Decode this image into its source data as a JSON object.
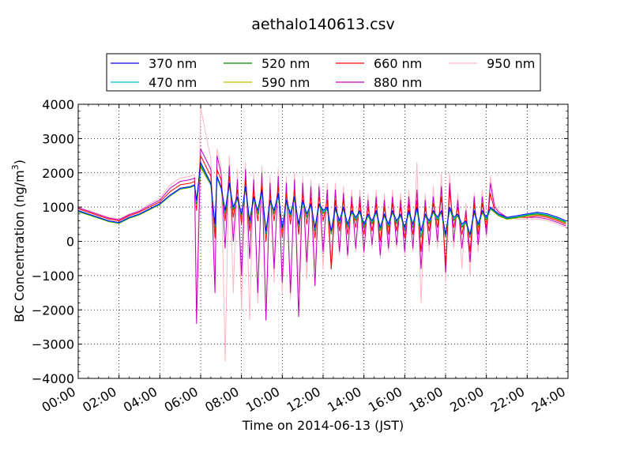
{
  "chart_data": {
    "type": "line",
    "title": "aethalo140613.csv",
    "xlabel": "Time on 2014-06-13 (JST)",
    "ylabel_main": "BC Concentration (ng/m",
    "ylabel_sup": "3",
    "ylabel_close": ")",
    "xlim": [
      0,
      24
    ],
    "ylim": [
      -4000,
      4000
    ],
    "x_ticks": [
      0,
      2,
      4,
      6,
      8,
      10,
      12,
      14,
      16,
      18,
      20,
      22,
      24
    ],
    "x_tick_labels": [
      "00:00",
      "02:00",
      "04:00",
      "06:00",
      "08:00",
      "10:00",
      "12:00",
      "14:00",
      "16:00",
      "18:00",
      "20:00",
      "22:00",
      "24:00"
    ],
    "y_ticks": [
      -4000,
      -3000,
      -2000,
      -1000,
      0,
      1000,
      2000,
      3000,
      4000
    ],
    "y_tick_labels": [
      "−4000",
      "−3000",
      "−2000",
      "−1000",
      "0",
      "1000",
      "2000",
      "3000",
      "4000"
    ],
    "grid": true,
    "legend_placement": "top",
    "x": [
      0.0,
      0.5,
      1.0,
      1.5,
      2.0,
      2.5,
      3.0,
      3.5,
      4.0,
      4.5,
      5.0,
      5.5,
      5.7,
      5.8,
      6.0,
      6.5,
      6.7,
      6.8,
      7.0,
      7.2,
      7.4,
      7.6,
      7.8,
      8.0,
      8.2,
      8.4,
      8.6,
      8.8,
      9.0,
      9.2,
      9.4,
      9.6,
      9.8,
      10.0,
      10.2,
      10.4,
      10.6,
      10.8,
      11.0,
      11.2,
      11.4,
      11.6,
      11.8,
      12.0,
      12.2,
      12.4,
      12.6,
      12.8,
      13.0,
      13.2,
      13.4,
      13.6,
      13.8,
      14.0,
      14.2,
      14.4,
      14.6,
      14.8,
      15.0,
      15.2,
      15.4,
      15.6,
      15.8,
      16.0,
      16.2,
      16.4,
      16.6,
      16.8,
      17.0,
      17.2,
      17.4,
      17.6,
      17.8,
      18.0,
      18.2,
      18.4,
      18.6,
      18.8,
      19.0,
      19.2,
      19.4,
      19.6,
      19.8,
      20.0,
      20.2,
      20.4,
      20.6,
      21.0,
      21.5,
      22.0,
      22.5,
      23.0,
      23.5,
      23.9
    ],
    "series": [
      {
        "name": "370 nm",
        "color": "#0000ff",
        "values": [
          900,
          800,
          700,
          600,
          550,
          700,
          800,
          950,
          1100,
          1350,
          1550,
          1600,
          1650,
          1200,
          2300,
          1700,
          500,
          1900,
          1600,
          900,
          1700,
          1000,
          1300,
          800,
          1600,
          600,
          1300,
          900,
          1500,
          300,
          1200,
          900,
          1400,
          400,
          1200,
          800,
          1300,
          500,
          1200,
          800,
          1100,
          400,
          1100,
          900,
          1000,
          300,
          1000,
          600,
          1000,
          500,
          900,
          700,
          900,
          500,
          800,
          600,
          900,
          400,
          800,
          500,
          900,
          600,
          800,
          400,
          900,
          500,
          1000,
          300,
          800,
          600,
          900,
          700,
          900,
          200,
          1000,
          700,
          800,
          500,
          600,
          200,
          900,
          500,
          900,
          700,
          1000,
          900,
          800,
          700,
          750,
          800,
          850,
          800,
          700,
          600
        ]
      },
      {
        "name": "470 nm",
        "color": "#00bfbf",
        "values": [
          880,
          790,
          690,
          590,
          540,
          690,
          790,
          940,
          1090,
          1340,
          1540,
          1590,
          1640,
          1150,
          2250,
          1680,
          450,
          1880,
          1580,
          850,
          1680,
          950,
          1280,
          750,
          1580,
          550,
          1280,
          850,
          1480,
          250,
          1180,
          850,
          1380,
          350,
          1180,
          750,
          1280,
          450,
          1180,
          750,
          1080,
          350,
          1080,
          850,
          980,
          250,
          980,
          550,
          980,
          450,
          880,
          650,
          880,
          450,
          780,
          550,
          880,
          350,
          780,
          450,
          880,
          550,
          780,
          350,
          880,
          450,
          980,
          150,
          780,
          550,
          880,
          650,
          880,
          150,
          980,
          650,
          780,
          450,
          580,
          150,
          880,
          450,
          880,
          650,
          980,
          880,
          780,
          680,
          720,
          780,
          820,
          770,
          670,
          570
        ]
      },
      {
        "name": "520 nm",
        "color": "#008000",
        "values": [
          870,
          780,
          680,
          580,
          530,
          680,
          780,
          930,
          1080,
          1330,
          1530,
          1580,
          1630,
          1100,
          2200,
          1660,
          420,
          1860,
          1560,
          820,
          1660,
          920,
          1260,
          720,
          1560,
          520,
          1260,
          820,
          1460,
          220,
          1160,
          820,
          1360,
          320,
          1160,
          720,
          1260,
          420,
          1160,
          720,
          1060,
          320,
          1060,
          820,
          960,
          220,
          960,
          520,
          960,
          420,
          860,
          620,
          860,
          420,
          760,
          520,
          860,
          320,
          760,
          420,
          860,
          520,
          760,
          320,
          860,
          420,
          960,
          120,
          760,
          520,
          860,
          620,
          860,
          120,
          960,
          620,
          760,
          420,
          560,
          120,
          860,
          420,
          860,
          620,
          960,
          860,
          760,
          660,
          700,
          760,
          800,
          750,
          650,
          550
        ]
      },
      {
        "name": "590 nm",
        "color": "#bfbf00",
        "values": [
          860,
          770,
          670,
          570,
          520,
          670,
          770,
          920,
          1070,
          1320,
          1520,
          1570,
          1620,
          1050,
          2150,
          1640,
          400,
          1840,
          1540,
          800,
          1640,
          900,
          1240,
          700,
          1540,
          500,
          1240,
          800,
          1440,
          200,
          1140,
          800,
          1340,
          300,
          1140,
          700,
          1240,
          400,
          1140,
          700,
          1040,
          300,
          1040,
          800,
          940,
          200,
          940,
          500,
          940,
          400,
          840,
          600,
          840,
          400,
          740,
          500,
          840,
          300,
          740,
          400,
          840,
          500,
          740,
          300,
          840,
          400,
          940,
          100,
          740,
          500,
          840,
          600,
          840,
          100,
          940,
          600,
          740,
          400,
          540,
          100,
          840,
          400,
          840,
          600,
          940,
          840,
          740,
          640,
          680,
          740,
          780,
          730,
          630,
          530
        ]
      },
      {
        "name": "660 nm",
        "color": "#ff0000",
        "values": [
          950,
          850,
          750,
          650,
          600,
          750,
          850,
          1000,
          1150,
          1450,
          1650,
          1700,
          1750,
          900,
          2500,
          1900,
          100,
          2100,
          1800,
          600,
          1900,
          700,
          1500,
          500,
          1800,
          300,
          1500,
          600,
          1700,
          0,
          1400,
          600,
          1600,
          100,
          1400,
          500,
          1500,
          200,
          1400,
          500,
          1300,
          100,
          1300,
          600,
          1200,
          -800,
          1200,
          300,
          1200,
          200,
          1100,
          400,
          1100,
          200,
          1000,
          300,
          1100,
          0,
          1000,
          200,
          1100,
          300,
          1000,
          100,
          1100,
          200,
          1200,
          -300,
          1000,
          300,
          1100,
          400,
          1300,
          -700,
          1500,
          400,
          1000,
          200,
          800,
          -300,
          1100,
          200,
          1100,
          400,
          1400,
          900,
          800,
          700,
          700,
          700,
          750,
          700,
          600,
          500
        ]
      },
      {
        "name": "880 nm",
        "color": "#bf00bf",
        "values": [
          980,
          880,
          780,
          680,
          630,
          780,
          880,
          1050,
          1200,
          1550,
          1750,
          1800,
          1850,
          -2400,
          2700,
          2100,
          -1500,
          2500,
          2000,
          -200,
          2200,
          0,
          1800,
          -1000,
          2100,
          -500,
          1800,
          -1500,
          2000,
          -2300,
          1700,
          -800,
          1900,
          -1200,
          1700,
          -1500,
          1800,
          -2200,
          1700,
          -600,
          1600,
          -1300,
          1600,
          -300,
          1500,
          -800,
          1500,
          -300,
          1400,
          -400,
          1300,
          -200,
          1300,
          -300,
          1200,
          -100,
          1300,
          -400,
          1200,
          -200,
          1300,
          -100,
          1200,
          -300,
          1300,
          -200,
          1500,
          -800,
          1200,
          -100,
          1300,
          0,
          1600,
          -900,
          1700,
          0,
          1200,
          -200,
          900,
          -600,
          1300,
          -100,
          1300,
          200,
          1700,
          1000,
          850,
          700,
          700,
          700,
          700,
          650,
          550,
          450
        ]
      },
      {
        "name": "950 nm",
        "color": "#ffb6c1",
        "values": [
          1000,
          900,
          800,
          700,
          650,
          800,
          900,
          1100,
          1250,
          1650,
          1850,
          1900,
          1950,
          -2000,
          3900,
          2400,
          -1200,
          2700,
          2200,
          -3500,
          2500,
          -1500,
          2100,
          -2000,
          2300,
          -2300,
          2000,
          -1800,
          2200,
          -2000,
          1900,
          -1200,
          2100,
          -1500,
          1900,
          -1700,
          2000,
          -1500,
          1900,
          -1100,
          1800,
          -800,
          1700,
          -800,
          1700,
          -700,
          1700,
          -400,
          1600,
          -500,
          1500,
          -300,
          1500,
          -400,
          1400,
          -200,
          1500,
          -500,
          1400,
          -300,
          1500,
          -200,
          1400,
          -400,
          1500,
          -300,
          2300,
          -1800,
          1400,
          -300,
          1600,
          -200,
          2000,
          -1200,
          2000,
          -200,
          1400,
          -800,
          1100,
          -1000,
          1400,
          -300,
          1500,
          100,
          1900,
          1100,
          900,
          700,
          650,
          650,
          650,
          600,
          500,
          400
        ]
      }
    ]
  }
}
